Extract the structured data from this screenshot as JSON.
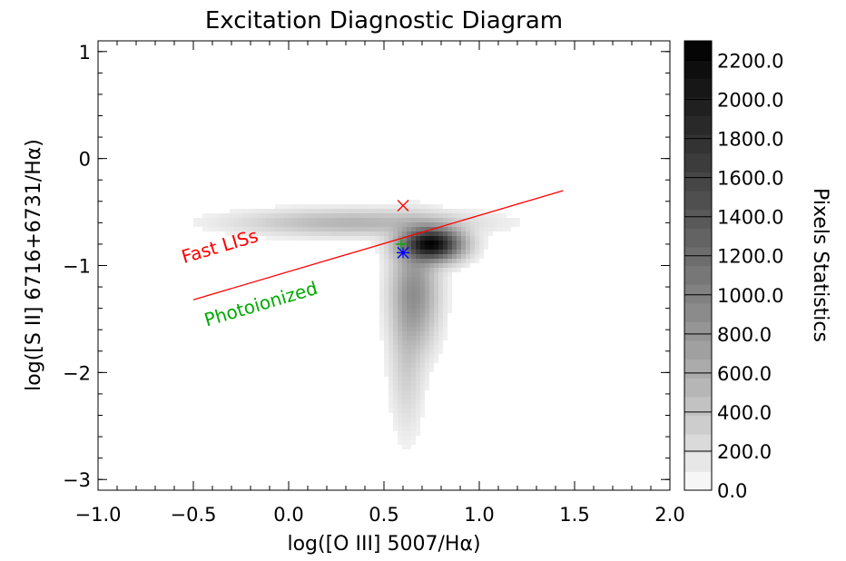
{
  "chart_data": {
    "type": "heatmap",
    "title": "Excitation Diagnostic Diagram",
    "xlabel": "log([O III] 5007/Hα)",
    "ylabel": "log([S II] 6716+6731/Hα)",
    "xlim": [
      -1.0,
      2.0
    ],
    "ylim": [
      -3.1,
      1.1
    ],
    "x_ticks": [
      -1.0,
      -0.5,
      0.0,
      0.5,
      1.0,
      1.5,
      2.0
    ],
    "x_tick_labels": [
      "−1.0",
      "−0.5",
      "0.0",
      "0.5",
      "1.0",
      "1.5",
      "2.0"
    ],
    "y_ticks": [
      1,
      0,
      -1,
      -2,
      -3
    ],
    "y_tick_labels": [
      "1",
      "0",
      "−1",
      "−2",
      "−3"
    ],
    "colorbar": {
      "label": "Pixels Statistics",
      "min": 0,
      "max": 2300,
      "ticks": [
        0,
        200,
        400,
        600,
        800,
        1000,
        1200,
        1400,
        1600,
        1800,
        2000,
        2200
      ],
      "tick_labels": [
        "0.0",
        "200.0",
        "400.0",
        "600.0",
        "800.0",
        "1000.0",
        "1200.0",
        "1400.0",
        "1600.0",
        "1800.0",
        "2000.0",
        "2200.0"
      ]
    },
    "density_components": [
      {
        "x": 0.75,
        "y": -0.8,
        "sx": 0.09,
        "sy": 0.09,
        "peak": 2200
      },
      {
        "x": 0.66,
        "y": -1.25,
        "sx": 0.07,
        "sy": 0.3,
        "peak": 500
      },
      {
        "x": 0.35,
        "y": -0.6,
        "sx": 0.35,
        "sy": 0.07,
        "peak": 250
      },
      {
        "x": 0.62,
        "y": -1.85,
        "sx": 0.05,
        "sy": 0.4,
        "peak": 120
      }
    ],
    "dividing_line": {
      "x": [
        -0.5,
        1.44
      ],
      "y": [
        -1.32,
        -0.3
      ],
      "color": "#ff0000"
    },
    "region_labels": [
      {
        "text": "Fast LISs",
        "x": -0.55,
        "y": -0.98,
        "color": "#ff0000"
      },
      {
        "text": "Photoionized",
        "x": -0.43,
        "y": -1.57,
        "color": "#00aa00"
      }
    ],
    "markers": [
      {
        "symbol": "x",
        "x": 0.6,
        "y": -0.44,
        "color": "#ff0000"
      },
      {
        "symbol": "asterisk",
        "x": 0.6,
        "y": -0.88,
        "color": "#0000ff"
      },
      {
        "symbol": "plus",
        "x": 0.59,
        "y": -0.8,
        "color": "#00aa00"
      }
    ]
  }
}
